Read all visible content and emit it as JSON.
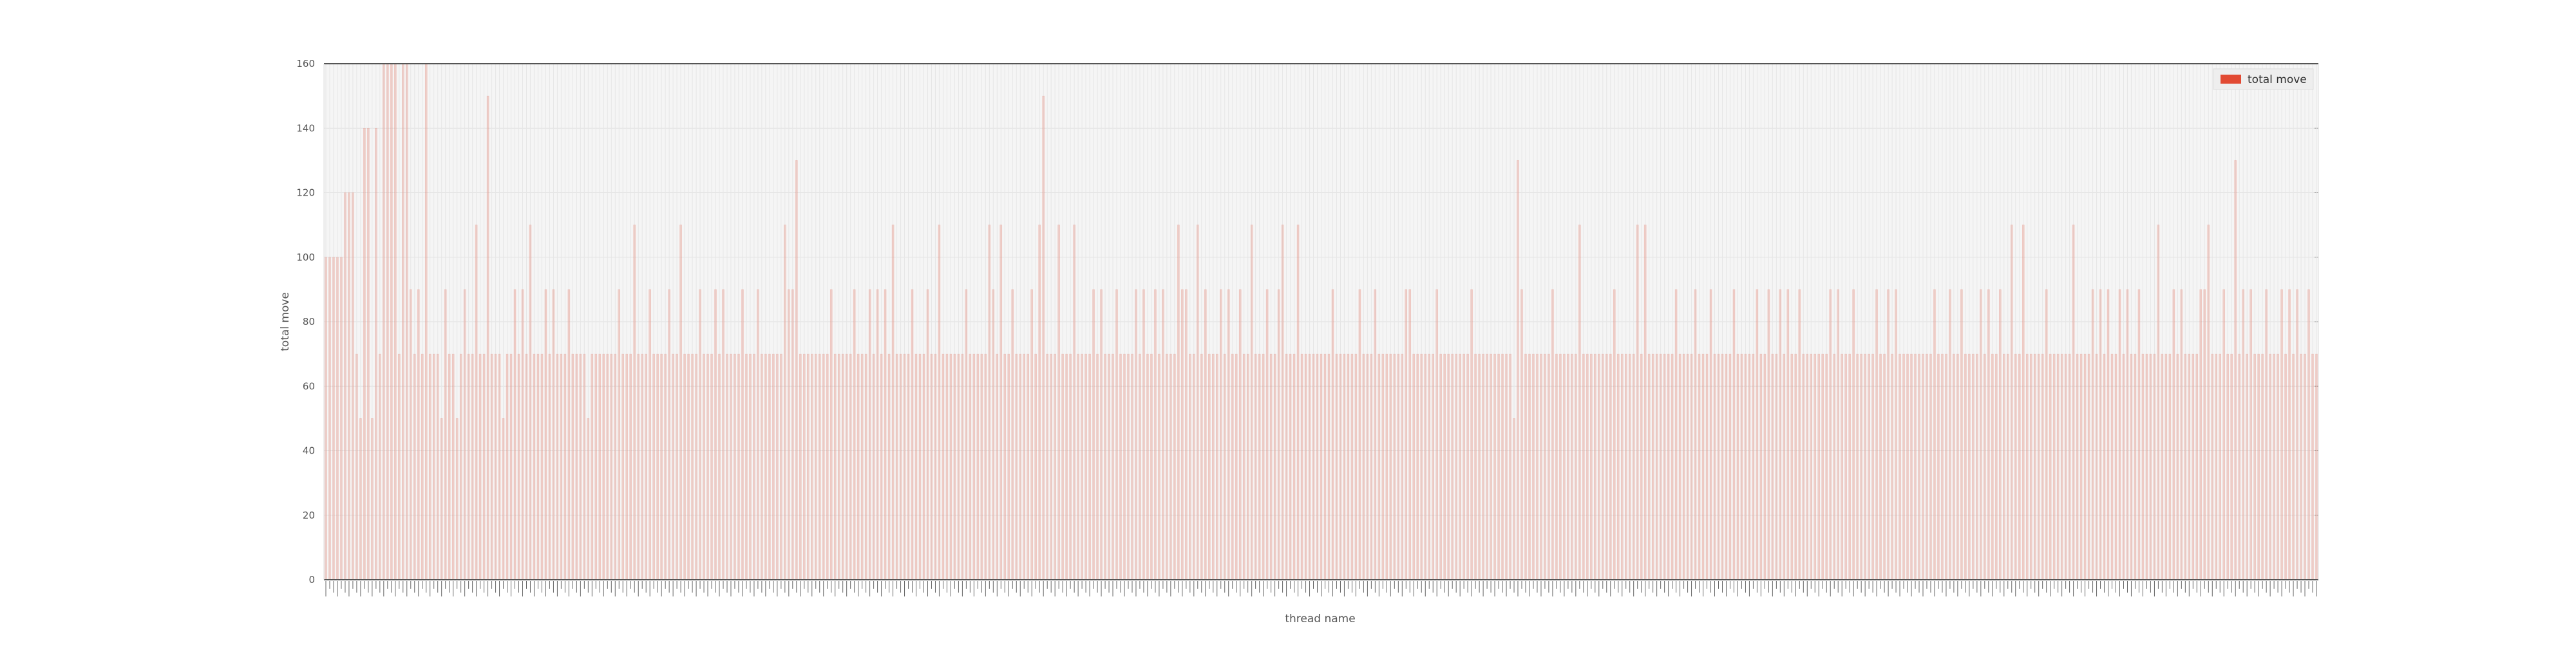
{
  "chart_data": {
    "type": "bar",
    "xlabel": "thread name",
    "ylabel": "total move",
    "ylim": [
      0,
      160
    ],
    "yticks": [
      0,
      20,
      40,
      60,
      80,
      100,
      120,
      140,
      160
    ],
    "grid": true,
    "legend_position": "top-right",
    "series": [
      {
        "name": "total move",
        "color": "#e24a33",
        "values": [
          100,
          100,
          100,
          100,
          100,
          120,
          120,
          120,
          70,
          50,
          140,
          140,
          50,
          140,
          70,
          160,
          160,
          160,
          160,
          70,
          160,
          160,
          90,
          70,
          90,
          70,
          160,
          70,
          70,
          70,
          50,
          90,
          70,
          70,
          50,
          70,
          90,
          70,
          70,
          110,
          70,
          70,
          150,
          70,
          70,
          70,
          50,
          70,
          70,
          90,
          70,
          90,
          70,
          110,
          70,
          70,
          70,
          90,
          70,
          90,
          70,
          70,
          70,
          90,
          70,
          70,
          70,
          70,
          50,
          70,
          70,
          70,
          70,
          70,
          70,
          70,
          90,
          70,
          70,
          70,
          110,
          70,
          70,
          70,
          90,
          70,
          70,
          70,
          70,
          90,
          70,
          70,
          110,
          70,
          70,
          70,
          70,
          90,
          70,
          70,
          70,
          90,
          70,
          90,
          70,
          70,
          70,
          70,
          90,
          70,
          70,
          70,
          90,
          70,
          70,
          70,
          70,
          70,
          70,
          110,
          90,
          90,
          130,
          70,
          70,
          70,
          70,
          70,
          70,
          70,
          70,
          90,
          70,
          70,
          70,
          70,
          70,
          90,
          70,
          70,
          70,
          90,
          70,
          90,
          70,
          90,
          70,
          110,
          70,
          70,
          70,
          70,
          90,
          70,
          70,
          70,
          90,
          70,
          70,
          110,
          70,
          70,
          70,
          70,
          70,
          70,
          90,
          70,
          70,
          70,
          70,
          70,
          110,
          90,
          70,
          110,
          70,
          70,
          90,
          70,
          70,
          70,
          70,
          90,
          70,
          110,
          150,
          70,
          70,
          70,
          110,
          70,
          70,
          70,
          110,
          70,
          70,
          70,
          70,
          90,
          70,
          90,
          70,
          70,
          70,
          90,
          70,
          70,
          70,
          70,
          90,
          70,
          90,
          70,
          70,
          90,
          70,
          90,
          70,
          70,
          70,
          110,
          90,
          90,
          70,
          70,
          110,
          70,
          90,
          70,
          70,
          70,
          90,
          70,
          90,
          70,
          70,
          90,
          70,
          70,
          110,
          70,
          70,
          70,
          90,
          70,
          70,
          90,
          110,
          70,
          70,
          70,
          110,
          70,
          70,
          70,
          70,
          70,
          70,
          70,
          70,
          90,
          70,
          70,
          70,
          70,
          70,
          70,
          90,
          70,
          70,
          70,
          90,
          70,
          70,
          70,
          70,
          70,
          70,
          70,
          90,
          90,
          70,
          70,
          70,
          70,
          70,
          70,
          90,
          70,
          70,
          70,
          70,
          70,
          70,
          70,
          70,
          90,
          70,
          70,
          70,
          70,
          70,
          70,
          70,
          70,
          70,
          70,
          50,
          130,
          90,
          70,
          70,
          70,
          70,
          70,
          70,
          70,
          90,
          70,
          70,
          70,
          70,
          70,
          70,
          110,
          70,
          70,
          70,
          70,
          70,
          70,
          70,
          70,
          90,
          70,
          70,
          70,
          70,
          70,
          110,
          70,
          110,
          70,
          70,
          70,
          70,
          70,
          70,
          70,
          90,
          70,
          70,
          70,
          70,
          90,
          70,
          70,
          70,
          90,
          70,
          70,
          70,
          70,
          70,
          90,
          70,
          70,
          70,
          70,
          70,
          90,
          70,
          70,
          90,
          70,
          70,
          90,
          70,
          90,
          70,
          70,
          90,
          70,
          70,
          70,
          70,
          70,
          70,
          70,
          90,
          70,
          90,
          70,
          70,
          70,
          90,
          70,
          70,
          70,
          70,
          70,
          90,
          70,
          70,
          90,
          70,
          90,
          70,
          70,
          70,
          70,
          70,
          70,
          70,
          70,
          70,
          90,
          70,
          70,
          70,
          90,
          70,
          70,
          90,
          70,
          70,
          70,
          70,
          90,
          70,
          90,
          70,
          70,
          90,
          70,
          70,
          110,
          70,
          70,
          110,
          70,
          70,
          70,
          70,
          70,
          90,
          70,
          70,
          70,
          70,
          70,
          70,
          110,
          70,
          70,
          70,
          70,
          90,
          70,
          90,
          70,
          90,
          70,
          70,
          90,
          70,
          90,
          70,
          70,
          90,
          70,
          70,
          70,
          70,
          110,
          70,
          70,
          70,
          90,
          70,
          90,
          70,
          70,
          70,
          70,
          90,
          90,
          110,
          70,
          70,
          70,
          90,
          70,
          70,
          130,
          70,
          90,
          70,
          90,
          70,
          70,
          70,
          90,
          70,
          70,
          70,
          90,
          70,
          90,
          70,
          90,
          70,
          70,
          90,
          70,
          70
        ]
      }
    ]
  }
}
